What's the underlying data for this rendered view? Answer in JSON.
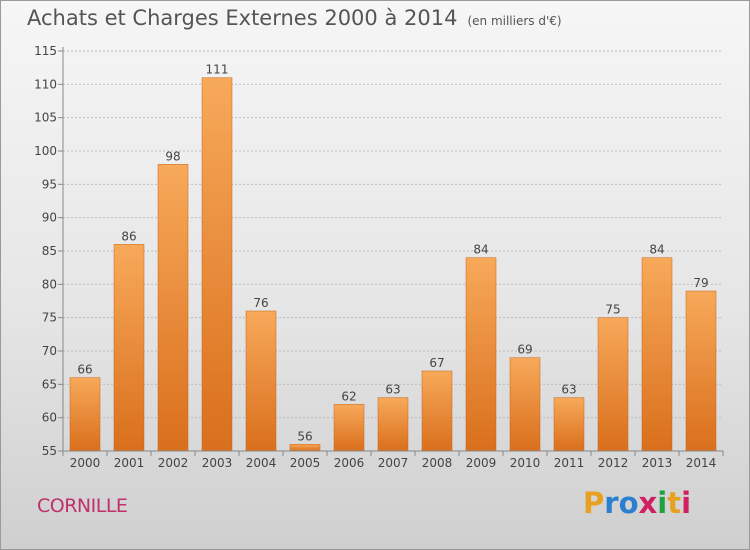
{
  "header": {
    "title": "Achats et Charges Externes 2000 à 2014",
    "subtitle": "(en milliers d'€)"
  },
  "footer": {
    "commune": "CORNILLE",
    "logo_text": "Proxiti",
    "logo_colors": [
      "#e8a020",
      "#2a7fd0",
      "#2a7fd0",
      "#d02060",
      "#20a040",
      "#e8a020",
      "#d02060"
    ]
  },
  "colors": {
    "bar_light": "#f7a95a",
    "bar_dark": "#d96f1c",
    "axis": "#888888",
    "grid": "#bdbdbd",
    "text": "#444444"
  },
  "chart_data": {
    "type": "bar",
    "title": "Achats et Charges Externes 2000 à 2014",
    "subtitle": "(en milliers d'€)",
    "categories": [
      "2000",
      "2001",
      "2002",
      "2003",
      "2004",
      "2005",
      "2006",
      "2007",
      "2008",
      "2009",
      "2010",
      "2011",
      "2012",
      "2013",
      "2014"
    ],
    "values": [
      66,
      86,
      98,
      111,
      76,
      56,
      62,
      63,
      67,
      84,
      69,
      63,
      75,
      84,
      79
    ],
    "ylim": [
      55,
      115
    ],
    "yticks": [
      55,
      60,
      65,
      70,
      75,
      80,
      85,
      90,
      95,
      100,
      105,
      110,
      115
    ],
    "grid": true,
    "xlabel": "",
    "ylabel": ""
  }
}
